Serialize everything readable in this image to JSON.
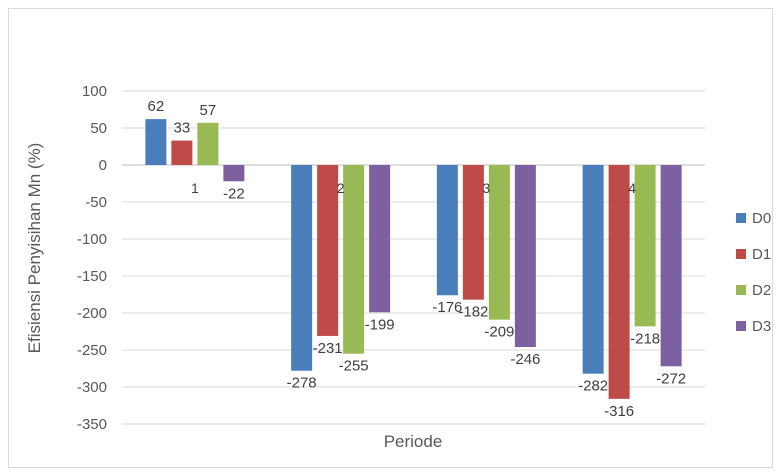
{
  "chart_data": {
    "type": "bar",
    "title": "",
    "xlabel": "Periode",
    "ylabel": "Efisiensi Penyisihan Mn (%)",
    "categories": [
      "1",
      "2",
      "3",
      "4"
    ],
    "series": [
      {
        "name": "D0",
        "color": "#4a7ebb",
        "values": [
          62,
          -278,
          -176,
          -282
        ]
      },
      {
        "name": "D1",
        "color": "#be4b48",
        "values": [
          33,
          -231,
          -182,
          -316
        ]
      },
      {
        "name": "D2",
        "color": "#98b954",
        "values": [
          57,
          -255,
          -209,
          -218
        ]
      },
      {
        "name": "D3",
        "color": "#7d60a0",
        "values": [
          -22,
          -199,
          -246,
          -272
        ]
      }
    ],
    "ylim": [
      -350,
      100
    ],
    "yticks": [
      100,
      50,
      0,
      -50,
      -100,
      -150,
      -200,
      -250,
      -300,
      -350
    ],
    "grid": true,
    "legend_position": "right"
  }
}
